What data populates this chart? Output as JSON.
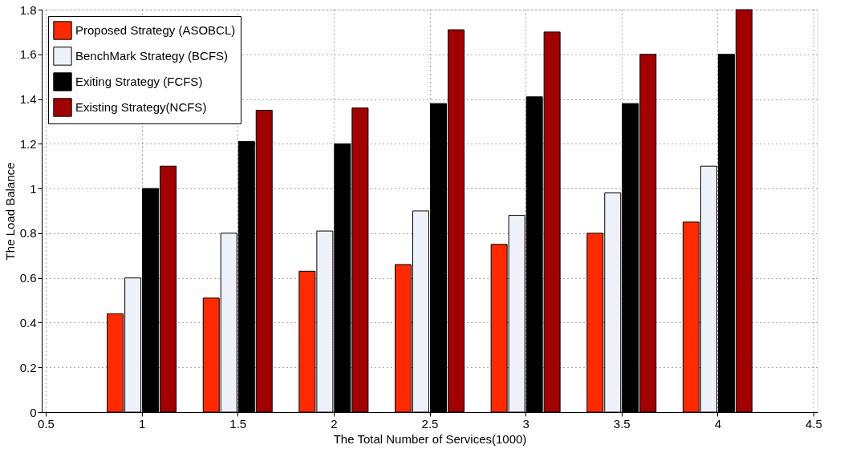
{
  "chart_data": {
    "type": "bar",
    "xlabel": "The Total Number of Services(1000)",
    "ylabel": "The Load Balance",
    "x": [
      1,
      1.5,
      2,
      2.5,
      3,
      3.5,
      4
    ],
    "series": [
      {
        "name": "Proposed Strategy (ASOBCL)",
        "color": "#ff2a00",
        "values": [
          0.44,
          0.51,
          0.63,
          0.66,
          0.75,
          0.8,
          0.85
        ]
      },
      {
        "name": "BenchMark Strategy (BCFS)",
        "color": "#eef2f8",
        "values": [
          0.6,
          0.8,
          0.81,
          0.9,
          0.88,
          0.98,
          1.1
        ]
      },
      {
        "name": "Exiting Strategy (FCFS)",
        "color": "#000000",
        "values": [
          1.0,
          1.21,
          1.2,
          1.38,
          1.41,
          1.38,
          1.6
        ]
      },
      {
        "name": "Existing Strategy(NCFS)",
        "color": "#a00000",
        "values": [
          1.1,
          1.35,
          1.36,
          1.71,
          1.7,
          1.6,
          1.8
        ]
      }
    ],
    "xlim": [
      0.5,
      4.5
    ],
    "xticks": [
      0.5,
      1,
      1.5,
      2,
      2.5,
      3,
      3.5,
      4,
      4.5
    ],
    "ylim": [
      0,
      1.8
    ],
    "yticks": [
      0,
      0.2,
      0.4,
      0.6,
      0.8,
      1,
      1.2,
      1.4,
      1.6,
      1.8
    ],
    "grid": true,
    "legend": "top left"
  }
}
